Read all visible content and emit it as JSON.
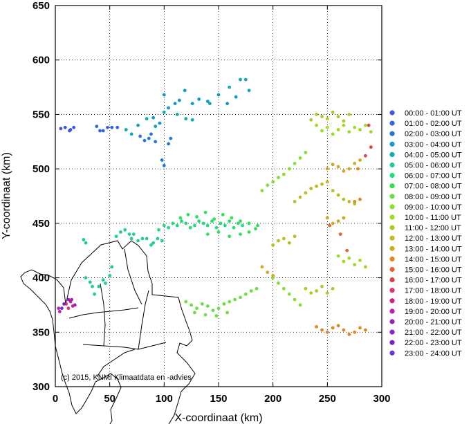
{
  "chart_data": {
    "type": "scatter",
    "title": "",
    "xlabel": "X-coordinaat (km)",
    "ylabel": "Y-coordinaat (km)",
    "xlim": [
      0,
      300
    ],
    "ylim": [
      300,
      650
    ],
    "x_ticks": [
      "0",
      "50",
      "100",
      "150",
      "200",
      "250",
      "300"
    ],
    "y_ticks": [
      "300",
      "350",
      "400",
      "450",
      "500",
      "550",
      "600",
      "650"
    ],
    "grid": true,
    "legend_position": "right",
    "copyright": "(c) 2015, KNMI Klimaatdata en -advies",
    "series": [
      {
        "name": "00:00 - 01:00 UT",
        "color": "#4455dd",
        "points": [
          [
            5,
            537
          ],
          [
            9,
            538
          ],
          [
            13,
            535
          ],
          [
            17,
            538
          ],
          [
            14,
            536
          ]
        ]
      },
      {
        "name": "01:00 - 02:00 UT",
        "color": "#3366dd",
        "points": [
          [
            38,
            539
          ],
          [
            41,
            535
          ],
          [
            44,
            535
          ],
          [
            48,
            538
          ],
          [
            52,
            538
          ],
          [
            57,
            538
          ]
        ]
      },
      {
        "name": "02:00 - 03:00 UT",
        "color": "#2277dd",
        "points": [
          [
            78,
            530
          ],
          [
            82,
            526
          ],
          [
            86,
            528
          ],
          [
            88,
            532
          ],
          [
            92,
            525
          ],
          [
            98,
            508
          ],
          [
            100,
            503
          ],
          [
            104,
            523
          ],
          [
            106,
            528
          ]
        ]
      },
      {
        "name": "03:00 - 04:00 UT",
        "color": "#1199cc",
        "points": [
          [
            90,
            547
          ],
          [
            96,
            542
          ],
          [
            100,
            568
          ],
          [
            104,
            556
          ],
          [
            110,
            560
          ],
          [
            114,
            563
          ],
          [
            119,
            572
          ],
          [
            126,
            560
          ],
          [
            132,
            564
          ],
          [
            140,
            562
          ],
          [
            150,
            568
          ],
          [
            158,
            560
          ],
          [
            166,
            566
          ]
        ]
      },
      {
        "name": "04:00 - 05:00 UT",
        "color": "#11aaaa",
        "points": [
          [
            65,
            536
          ],
          [
            70,
            532
          ],
          [
            76,
            540
          ],
          [
            84,
            546
          ],
          [
            92,
            539
          ],
          [
            100,
            552
          ],
          [
            112,
            550
          ],
          [
            120,
            546
          ],
          [
            126,
            545
          ],
          [
            142,
            560
          ],
          [
            160,
            575
          ],
          [
            170,
            582
          ],
          [
            175,
            582
          ],
          [
            178,
            572
          ]
        ]
      },
      {
        "name": "05:00 - 06:00 UT",
        "color": "#22cc99",
        "points": [
          [
            28,
            400
          ],
          [
            32,
            396
          ],
          [
            34,
            392
          ],
          [
            36,
            385
          ],
          [
            40,
            392
          ],
          [
            44,
            398
          ],
          [
            46,
            395
          ],
          [
            50,
            402
          ],
          [
            52,
            410
          ],
          [
            26,
            435
          ],
          [
            28,
            432
          ],
          [
            56,
            438
          ],
          [
            60,
            442
          ],
          [
            64,
            444
          ],
          [
            68,
            440
          ],
          [
            70,
            436
          ],
          [
            72,
            440
          ],
          [
            76,
            434
          ],
          [
            80,
            436
          ],
          [
            84,
            436
          ],
          [
            88,
            430
          ],
          [
            90,
            432
          ],
          [
            94,
            436
          ],
          [
            98,
            434
          ]
        ]
      },
      {
        "name": "06:00 - 07:00 UT",
        "color": "#22dd77",
        "points": [
          [
            95,
            444
          ],
          [
            100,
            448
          ],
          [
            104,
            446
          ],
          [
            108,
            450
          ],
          [
            112,
            448
          ],
          [
            116,
            452
          ],
          [
            120,
            450
          ],
          [
            124,
            446
          ],
          [
            128,
            448
          ],
          [
            132,
            452
          ],
          [
            136,
            450
          ],
          [
            140,
            448
          ],
          [
            144,
            452
          ],
          [
            148,
            446
          ],
          [
            152,
            450
          ],
          [
            156,
            448
          ],
          [
            160,
            452
          ],
          [
            164,
            446
          ],
          [
            168,
            450
          ],
          [
            172,
            448
          ]
        ]
      },
      {
        "name": "07:00 - 08:00 UT",
        "color": "#33e055",
        "points": [
          [
            115,
            455
          ],
          [
            122,
            458
          ],
          [
            130,
            456
          ],
          [
            138,
            460
          ],
          [
            146,
            454
          ],
          [
            154,
            458
          ],
          [
            162,
            455
          ],
          [
            170,
            452
          ],
          [
            178,
            450
          ],
          [
            186,
            448
          ],
          [
            140,
            440
          ],
          [
            150,
            442
          ],
          [
            160,
            438
          ],
          [
            170,
            440
          ],
          [
            178,
            442
          ],
          [
            184,
            445
          ]
        ]
      },
      {
        "name": "08:00 - 09:00 UT",
        "color": "#66e044",
        "points": [
          [
            120,
            378
          ],
          [
            125,
            375
          ],
          [
            130,
            372
          ],
          [
            135,
            376
          ],
          [
            140,
            374
          ],
          [
            145,
            370
          ],
          [
            150,
            372
          ],
          [
            155,
            376
          ],
          [
            160,
            378
          ],
          [
            165,
            380
          ],
          [
            170,
            382
          ],
          [
            175,
            385
          ],
          [
            180,
            388
          ],
          [
            185,
            390
          ],
          [
            128,
            368
          ],
          [
            138,
            366
          ],
          [
            148,
            365
          ],
          [
            158,
            368
          ]
        ]
      },
      {
        "name": "09:00 - 10:00 UT",
        "color": "#88dd33",
        "points": [
          [
            190,
            480
          ],
          [
            195,
            485
          ],
          [
            200,
            488
          ],
          [
            205,
            492
          ],
          [
            210,
            495
          ],
          [
            215,
            500
          ],
          [
            220,
            505
          ],
          [
            225,
            510
          ],
          [
            230,
            515
          ],
          [
            200,
            400
          ],
          [
            205,
            395
          ],
          [
            210,
            390
          ],
          [
            215,
            385
          ],
          [
            220,
            380
          ],
          [
            225,
            375
          ]
        ]
      },
      {
        "name": "10:00 - 11:00 UT",
        "color": "#99dd22",
        "points": [
          [
            240,
            540
          ],
          [
            245,
            535
          ],
          [
            250,
            538
          ],
          [
            255,
            532
          ],
          [
            260,
            536
          ],
          [
            265,
            540
          ],
          [
            270,
            534
          ],
          [
            275,
            538
          ],
          [
            280,
            536
          ],
          [
            285,
            540
          ],
          [
            290,
            534
          ],
          [
            260,
            420
          ],
          [
            265,
            415
          ],
          [
            270,
            418
          ],
          [
            275,
            412
          ],
          [
            280,
            416
          ],
          [
            285,
            410
          ]
        ]
      },
      {
        "name": "11:00 - 12:00 UT",
        "color": "#aacc22",
        "points": [
          [
            235,
            545
          ],
          [
            240,
            550
          ],
          [
            245,
            548
          ],
          [
            250,
            546
          ],
          [
            255,
            552
          ],
          [
            260,
            548
          ],
          [
            265,
            544
          ],
          [
            270,
            550
          ],
          [
            230,
            390
          ],
          [
            235,
            386
          ],
          [
            240,
            388
          ],
          [
            245,
            392
          ],
          [
            250,
            386
          ],
          [
            255,
            390
          ]
        ]
      },
      {
        "name": "12:00 - 13:00 UT",
        "color": "#bbbb22",
        "points": [
          [
            220,
            470
          ],
          [
            225,
            474
          ],
          [
            230,
            478
          ],
          [
            235,
            482
          ],
          [
            240,
            484
          ],
          [
            245,
            486
          ],
          [
            250,
            488
          ],
          [
            255,
            480
          ],
          [
            260,
            476
          ],
          [
            265,
            472
          ],
          [
            270,
            470
          ],
          [
            275,
            468
          ],
          [
            200,
            430
          ],
          [
            205,
            434
          ],
          [
            210,
            436
          ],
          [
            215,
            432
          ],
          [
            220,
            438
          ]
        ]
      },
      {
        "name": "13:00 - 14:00 UT",
        "color": "#ccaa22",
        "points": [
          [
            250,
            500
          ],
          [
            255,
            504
          ],
          [
            260,
            502
          ],
          [
            265,
            498
          ],
          [
            270,
            500
          ],
          [
            275,
            505
          ],
          [
            280,
            508
          ],
          [
            250,
            455
          ],
          [
            255,
            450
          ],
          [
            260,
            452
          ],
          [
            265,
            455
          ],
          [
            190,
            410
          ],
          [
            195,
            405
          ],
          [
            200,
            402
          ]
        ]
      },
      {
        "name": "14:00 - 15:00 UT",
        "color": "#dd8822",
        "points": [
          [
            240,
            355
          ],
          [
            245,
            352
          ],
          [
            250,
            350
          ],
          [
            255,
            354
          ],
          [
            260,
            356
          ],
          [
            265,
            352
          ],
          [
            270,
            348
          ],
          [
            275,
            350
          ],
          [
            280,
            354
          ],
          [
            285,
            352
          ],
          [
            275,
            470
          ],
          [
            280,
            472
          ],
          [
            278,
            500
          ]
        ]
      },
      {
        "name": "15:00 - 16:00 UT",
        "color": "#dd6633",
        "points": [
          [
            252,
            448
          ],
          [
            262,
            440
          ],
          [
            268,
            425
          ]
        ]
      },
      {
        "name": "16:00 - 17:00 UT",
        "color": "#dd4444",
        "points": [
          [
            285,
            512
          ],
          [
            290,
            520
          ],
          [
            288,
            540
          ]
        ]
      },
      {
        "name": "17:00 - 18:00 UT",
        "color": "#dd3366",
        "points": [
          [
            10,
            376
          ],
          [
            12,
            372
          ]
        ]
      },
      {
        "name": "18:00 - 19:00 UT",
        "color": "#cc2288",
        "points": [
          [
            14,
            378
          ],
          [
            16,
            374
          ]
        ]
      },
      {
        "name": "19:00 - 20:00 UT",
        "color": "#bb22aa",
        "points": [
          [
            3,
            372
          ],
          [
            4,
            369
          ]
        ]
      },
      {
        "name": "20:00 - 21:00 UT",
        "color": "#9922bb",
        "points": [
          [
            15,
            380
          ],
          [
            18,
            375
          ]
        ]
      },
      {
        "name": "21:00 - 22:00 UT",
        "color": "#8822cc",
        "points": [
          [
            12,
            380
          ]
        ]
      },
      {
        "name": "22:00 - 23:00 UT",
        "color": "#7722cc",
        "points": [
          [
            8,
            376
          ]
        ]
      },
      {
        "name": "23:00 - 24:00 UT",
        "color": "#6633dd",
        "points": [
          [
            6,
            372
          ]
        ]
      }
    ]
  }
}
